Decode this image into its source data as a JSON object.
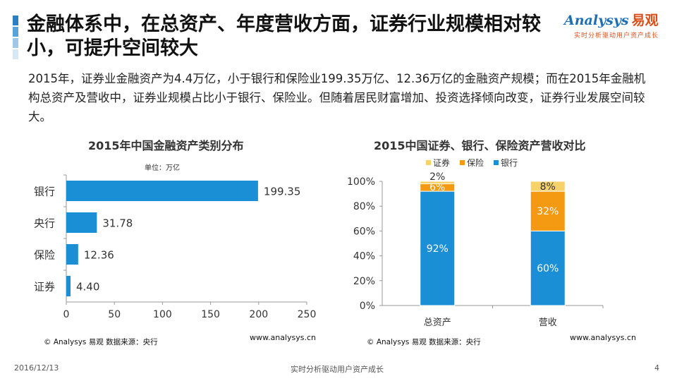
{
  "header": {
    "title": "金融体系中，在总资产、年度营收方面，证券行业规模相对较小，可提升空间较大",
    "summary": "2015年，证券业金融资产为4.4万亿，小于银行和保险业199.35万亿、12.36万亿的金融资产规模；而在2015年金融机构总资产及营收中，证券业规模占比小于银行、保险业。但随着居民财富增加、投资选择倾向改变，证券行业发展空间较大。"
  },
  "logo": {
    "brand": "Analysys",
    "brand_cn": "易观",
    "tagline": "实时分析驱动用户资产成长"
  },
  "colors": {
    "blue": "#1a8fd6",
    "orange": "#f39a12",
    "yellow": "#f7d26b",
    "accent_orange": "#f08c2a",
    "accent_blue": "#2b7fc3"
  },
  "chart_data": [
    {
      "type": "bar",
      "orientation": "horizontal",
      "title": "2015年中国金融资产类别分布",
      "unit_label": "单位：万亿",
      "categories": [
        "银行",
        "央行",
        "保险",
        "证券"
      ],
      "values": [
        199.35,
        31.78,
        12.36,
        4.4
      ],
      "value_labels": [
        "199.35",
        "31.78",
        "12.36",
        "4.40"
      ],
      "xlim": [
        0,
        250
      ],
      "xticks": [
        "0",
        "50",
        "100",
        "150",
        "200",
        "250"
      ],
      "color": "#1a8fd6"
    },
    {
      "type": "bar",
      "stacked": true,
      "title": "2015中国证券、银行、保险资产营收对比",
      "categories": [
        "总资产",
        "营收"
      ],
      "series": [
        {
          "name": "银行",
          "values": [
            92,
            60
          ],
          "labels": [
            "92%",
            "60%"
          ],
          "color": "#1a8fd6"
        },
        {
          "name": "保险",
          "values": [
            6,
            32
          ],
          "labels": [
            "6%",
            "32%"
          ],
          "color": "#f39a12"
        },
        {
          "name": "证券",
          "values": [
            2,
            8
          ],
          "labels": [
            "2%",
            "8%"
          ],
          "color": "#f7d26b"
        }
      ],
      "legend_order": [
        "证券",
        "保险",
        "银行"
      ],
      "ylim": [
        0,
        100
      ],
      "yticks": [
        "0%",
        "20%",
        "40%",
        "60%",
        "80%",
        "100%"
      ]
    }
  ],
  "sources": {
    "left": "© Analysys 易观  数据来源：央行",
    "right": "© Analysys 易观  数据来源：央行",
    "web_left": "www.analysys.cn",
    "web_right": "www.analysys.cn"
  },
  "footer": {
    "date": "2016/12/13",
    "center": "实时分析驱动用户资产成长",
    "page": "4"
  }
}
